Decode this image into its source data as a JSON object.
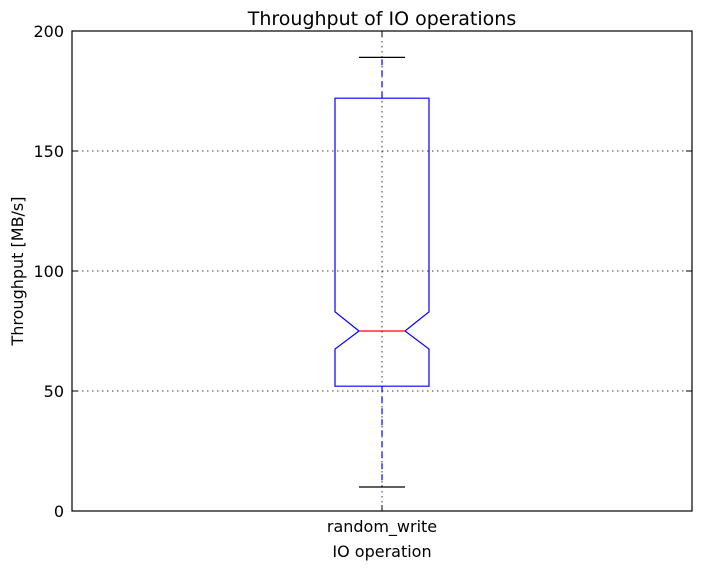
{
  "chart_data": {
    "type": "boxplot",
    "title": "Throughput of IO operations",
    "xlabel": "IO operation",
    "ylabel": "Throughput [MB/s]",
    "ylim": [
      0,
      200
    ],
    "yticks": [
      0,
      50,
      100,
      150,
      200
    ],
    "grid": true,
    "notched": true,
    "categories": [
      "random_write"
    ],
    "boxes": [
      {
        "category": "random_write",
        "whisker_low": 10,
        "q1": 52,
        "median": 75,
        "q3": 172,
        "whisker_high": 189,
        "notch_low": 67.5,
        "notch_high": 83
      }
    ],
    "colors": {
      "box": "#0000ff",
      "median": "#ff0000",
      "whisker": "#0000ff",
      "cap": "#000000",
      "grid": "#000000"
    }
  }
}
